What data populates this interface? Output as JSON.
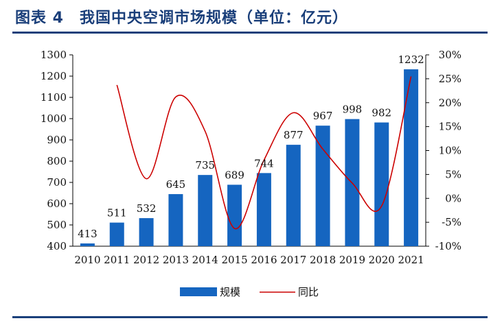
{
  "figure": {
    "title": "图表 4　我国中央空调市场规模（单位：亿元）"
  },
  "chart_data": {
    "type": "bar",
    "categories": [
      "2010",
      "2011",
      "2012",
      "2013",
      "2014",
      "2015",
      "2016",
      "2017",
      "2018",
      "2019",
      "2020",
      "2021"
    ],
    "series": [
      {
        "name": "规模",
        "type": "bar",
        "axis": "left",
        "color": "#1565c0",
        "values": [
          413,
          511,
          532,
          645,
          735,
          689,
          744,
          877,
          967,
          998,
          982,
          1232
        ],
        "labels": [
          "413",
          "511",
          "532",
          "645",
          "735",
          "689",
          "744",
          "877",
          "967",
          "998",
          "982",
          "1232"
        ]
      },
      {
        "name": "同比",
        "type": "line",
        "axis": "right",
        "color": "#cc0000",
        "smooth": true,
        "values": [
          null,
          23.7,
          4.1,
          21.2,
          14.0,
          -6.3,
          8.0,
          17.9,
          10.3,
          3.2,
          -1.6,
          25.5
        ]
      }
    ],
    "y_left": {
      "ylim": [
        400,
        1300
      ],
      "ticks": [
        "400",
        "500",
        "600",
        "700",
        "800",
        "900",
        "1000",
        "1100",
        "1200",
        "1300"
      ]
    },
    "y_right": {
      "ylim": [
        -10,
        30
      ],
      "ticks": [
        "-10%",
        "-5%",
        "0%",
        "5%",
        "10%",
        "15%",
        "20%",
        "25%",
        "30%"
      ]
    },
    "grid": false,
    "legend": "bottom-center"
  },
  "colors": {
    "title": "#1a3f7a",
    "bar": "#1565c0",
    "line": "#cc0000"
  }
}
